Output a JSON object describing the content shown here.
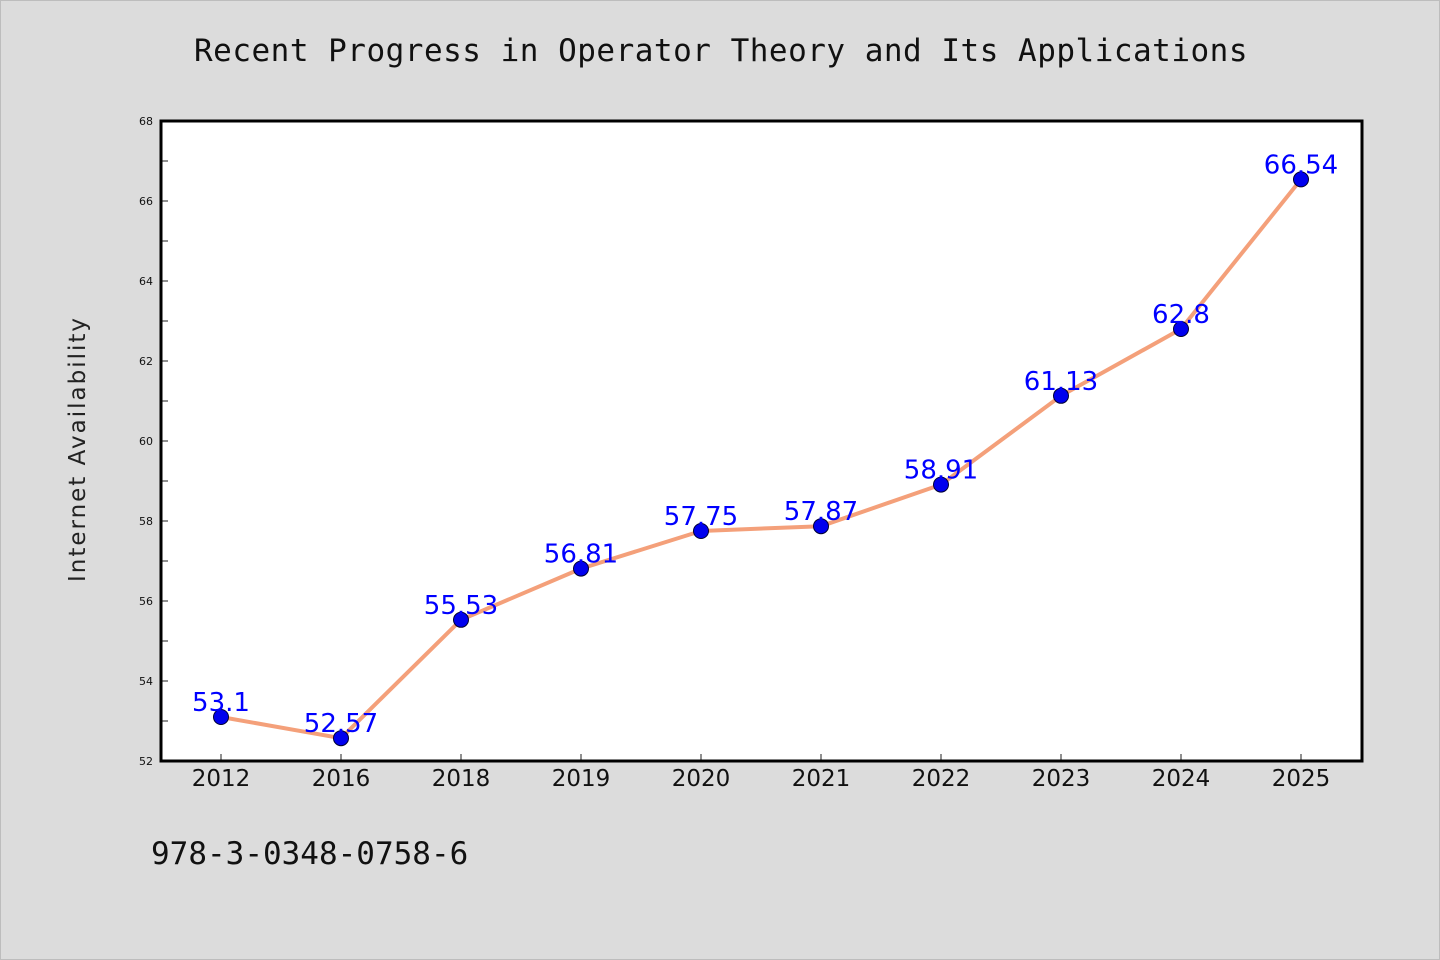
{
  "chart_data": {
    "type": "line",
    "title": "Recent Progress in Operator Theory and Its Applications",
    "xlabel": "",
    "ylabel": "Internet Availability",
    "categories": [
      "2012",
      "2016",
      "2018",
      "2019",
      "2020",
      "2021",
      "2022",
      "2023",
      "2024",
      "2025"
    ],
    "series": [
      {
        "values": [
          53.1,
          52.57,
          55.53,
          56.81,
          57.75,
          57.87,
          58.91,
          61.13,
          62.8,
          66.54
        ],
        "labels": [
          "53.1",
          "52.57",
          "55.53",
          "56.81",
          "57.75",
          "57.87",
          "58.91",
          "61.13",
          "62.8",
          "66.54"
        ]
      }
    ],
    "ylim": [
      52,
      68
    ],
    "yticks": [
      52,
      54,
      56,
      58,
      60,
      62,
      64,
      66,
      68
    ],
    "grid": false,
    "colors": {
      "line": "#f4a07a",
      "marker": "#0000ee",
      "data_label": "#0000ff"
    }
  },
  "footer": {
    "isbn": "978-3-0348-0758-6"
  }
}
